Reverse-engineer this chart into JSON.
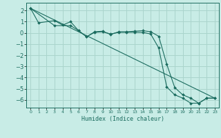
{
  "xlabel": "Humidex (Indice chaleur)",
  "bg_color": "#c8ece6",
  "grid_color": "#aad4cc",
  "line_color": "#1a6b5e",
  "xlim": [
    -0.5,
    23.5
  ],
  "ylim": [
    -6.7,
    2.7
  ],
  "yticks": [
    -6,
    -5,
    -4,
    -3,
    -2,
    -1,
    0,
    1,
    2
  ],
  "xticks": [
    0,
    1,
    2,
    3,
    4,
    5,
    6,
    7,
    8,
    9,
    10,
    11,
    12,
    13,
    14,
    15,
    16,
    17,
    18,
    19,
    20,
    21,
    22,
    23
  ],
  "series1_x": [
    0,
    1,
    3,
    4,
    5,
    6,
    7,
    8,
    9,
    10,
    11,
    12,
    13,
    14,
    15,
    16,
    17,
    18,
    19,
    20,
    21,
    22,
    23
  ],
  "series1_y": [
    2.2,
    0.9,
    1.1,
    0.7,
    1.0,
    0.2,
    -0.35,
    0.1,
    0.15,
    -0.15,
    0.1,
    0.1,
    0.15,
    0.2,
    0.1,
    -0.3,
    -2.8,
    -4.9,
    -5.55,
    -5.85,
    -6.3,
    -5.85,
    -5.85
  ],
  "series2_x": [
    0,
    3,
    5,
    6,
    7,
    8,
    9,
    10,
    11,
    12,
    13,
    14,
    15,
    16,
    17,
    18,
    19,
    20,
    21,
    22,
    23
  ],
  "series2_y": [
    2.2,
    0.65,
    0.65,
    0.2,
    -0.35,
    0.05,
    0.1,
    -0.1,
    0.05,
    0.05,
    0.05,
    0.05,
    -0.1,
    -1.35,
    -4.85,
    -5.55,
    -5.85,
    -6.3,
    -6.3,
    -5.85,
    -5.85
  ],
  "series3_x": [
    0,
    23
  ],
  "series3_y": [
    2.2,
    -5.85
  ]
}
